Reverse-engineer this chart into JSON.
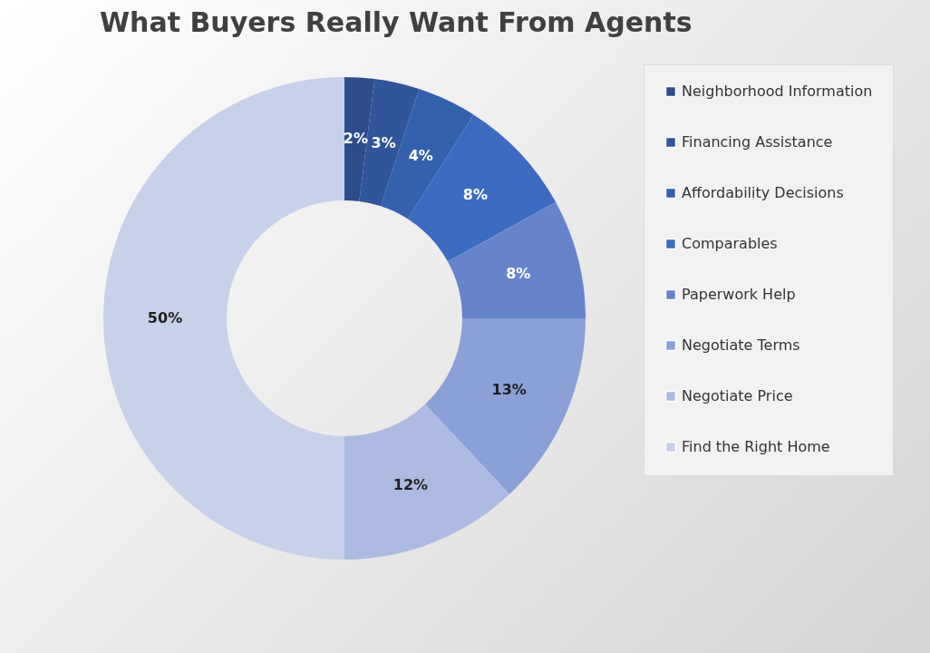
{
  "chart_data": {
    "type": "donut",
    "title": "What Buyers Really Want From Agents",
    "categories": [
      "Neighborhood Information",
      "Financing Assistance",
      "Affordability Decisions",
      "Comparables",
      "Paperwork Help",
      "Negotiate Terms",
      "Negotiate Price",
      "Find the Right Home"
    ],
    "values": [
      2,
      3,
      4,
      8,
      8,
      13,
      12,
      50
    ],
    "colors": [
      "#2c4d8a",
      "#30559b",
      "#3460ad",
      "#3d6bc1",
      "#6584cb",
      "#8aa0d6",
      "#adbbe2",
      "#c8d1ea"
    ],
    "value_labels": [
      "2%",
      "3%",
      "4%",
      "8%",
      "8%",
      "13%",
      "12%",
      "50%"
    ],
    "legend": "right"
  }
}
